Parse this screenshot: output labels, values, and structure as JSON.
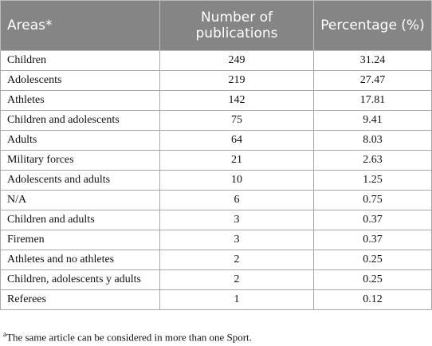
{
  "table": {
    "header": [
      "Areas*",
      "Number of publications",
      "Percentage (%)"
    ],
    "rows": [
      [
        "Children",
        249,
        31.24
      ],
      [
        "Adolescents",
        219,
        27.47
      ],
      [
        "Athletes",
        142,
        17.81
      ],
      [
        "Children and adolescents",
        75,
        9.41
      ],
      [
        "Adults",
        64,
        8.03
      ],
      [
        "Military forces",
        21,
        2.63
      ],
      [
        "Adolescents and adults",
        10,
        1.25
      ],
      [
        "N/A",
        6,
        0.75
      ],
      [
        "Children and adults",
        3,
        0.37
      ],
      [
        "Firemen",
        3,
        0.37
      ],
      [
        "Athletes and no athletes",
        2,
        0.25
      ],
      [
        "Children, adolescents y adults",
        2,
        0.25
      ],
      [
        "Referees",
        1,
        0.12
      ]
    ]
  },
  "footnote": {
    "marker": "a",
    "text": "The same article can be considered in more than one Sport."
  }
}
